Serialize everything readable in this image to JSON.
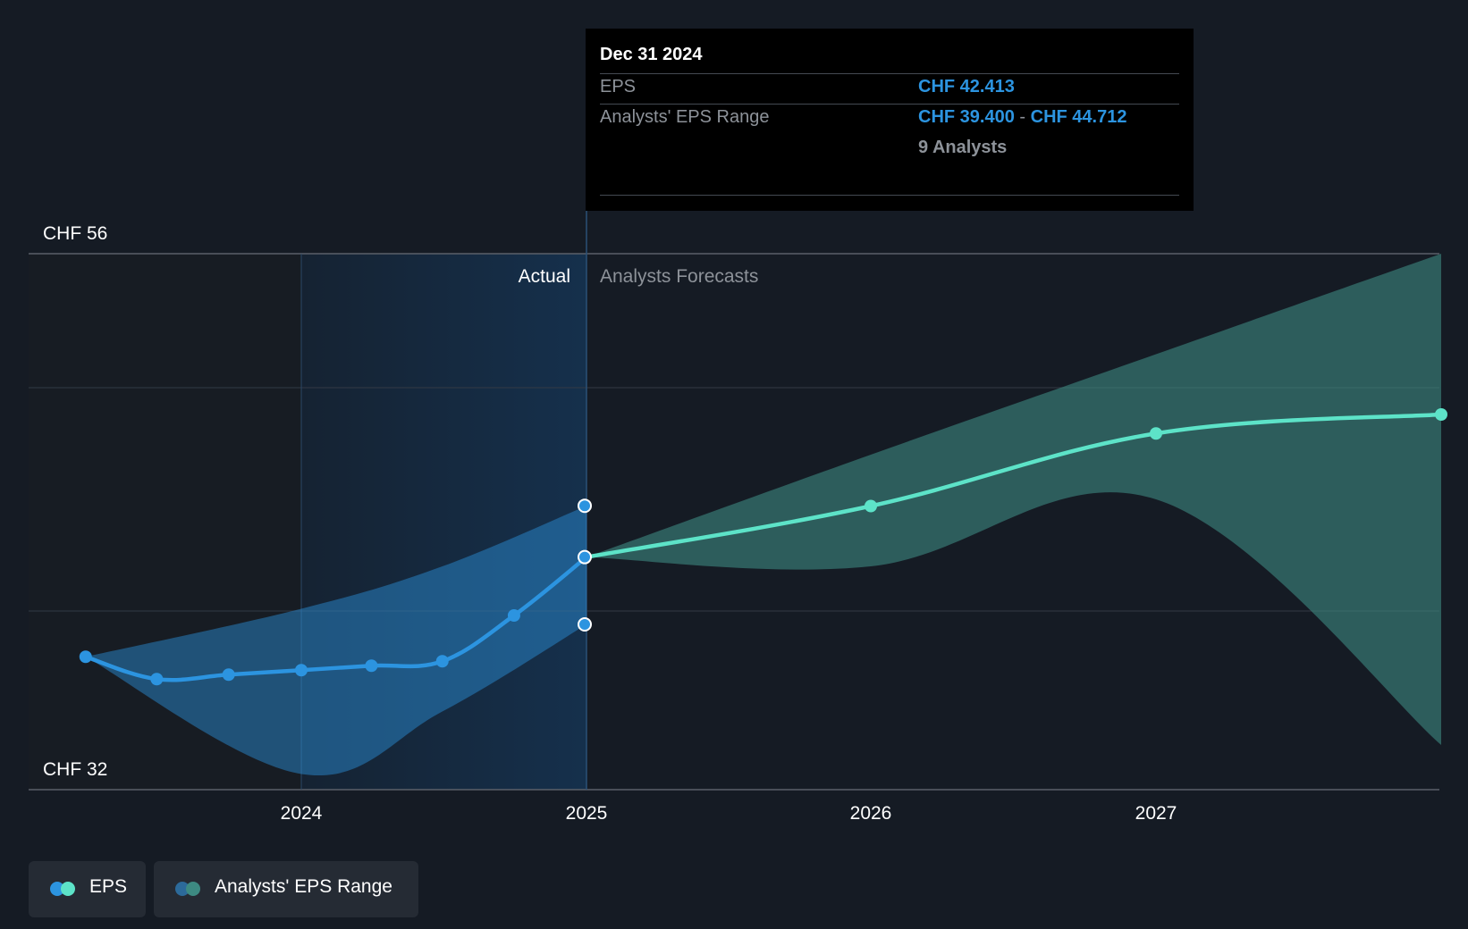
{
  "chart_data": {
    "type": "line",
    "currency": "CHF",
    "y_axis": {
      "min": 32,
      "max": 56,
      "tick_labels": [
        "CHF 56",
        "CHF 32"
      ]
    },
    "x_axis": {
      "tick_labels": [
        "2024",
        "2025",
        "2026",
        "2027"
      ]
    },
    "regions": {
      "actual_label": "Actual",
      "forecast_label": "Analysts Forecasts"
    },
    "series": [
      {
        "name": "EPS",
        "kind": "actual",
        "color": "#2c94e0",
        "points": [
          [
            "2023-03-31",
            37.95
          ],
          [
            "2023-06-30",
            36.95
          ],
          [
            "2023-09-30",
            37.15
          ],
          [
            "2023-12-31",
            37.35
          ],
          [
            "2024-03-31",
            37.55
          ],
          [
            "2024-06-30",
            37.75
          ],
          [
            "2024-09-30",
            39.8
          ],
          [
            "2024-12-31",
            42.413
          ]
        ]
      },
      {
        "name": "EPS",
        "kind": "forecast",
        "color": "#5de3c8",
        "points": [
          [
            "2024-12-31",
            42.413
          ],
          [
            "2025-12-31",
            44.7
          ],
          [
            "2026-12-31",
            47.95
          ],
          [
            "2027-12-31",
            48.8
          ]
        ]
      },
      {
        "name": "Analysts' EPS Range",
        "kind": "actual_range",
        "color": "#2c94e0",
        "low": [
          [
            "2023-03-31",
            37.95
          ],
          [
            "2023-12-31",
            32.7
          ],
          [
            "2024-06-30",
            35.5
          ],
          [
            "2024-12-31",
            39.4
          ]
        ],
        "high": [
          [
            "2023-03-31",
            37.95
          ],
          [
            "2023-12-31",
            40.1
          ],
          [
            "2024-06-30",
            42.0
          ],
          [
            "2024-12-31",
            44.712
          ]
        ]
      },
      {
        "name": "Analysts' EPS Range",
        "kind": "forecast_range",
        "color": "#3d8a82",
        "low": [
          [
            "2024-12-31",
            42.413
          ],
          [
            "2025-12-31",
            42.0
          ],
          [
            "2026-12-31",
            45.0
          ],
          [
            "2027-12-31",
            34.0
          ]
        ],
        "high": [
          [
            "2024-12-31",
            42.413
          ],
          [
            "2025-12-31",
            47.0
          ],
          [
            "2026-12-31",
            51.5
          ],
          [
            "2027-12-31",
            56.0
          ]
        ]
      }
    ],
    "tooltip": {
      "date": "Dec 31 2024",
      "eps_label": "EPS",
      "eps_value": "CHF 42.413",
      "range_label": "Analysts' EPS Range",
      "range_low": "CHF 39.400",
      "range_sep": "-",
      "range_high": "CHF 44.712",
      "analysts": "9 Analysts"
    },
    "legend": [
      {
        "label": "EPS",
        "colors": [
          "#2c94e0",
          "#5de3c8"
        ]
      },
      {
        "label": "Analysts' EPS Range",
        "colors": [
          "#2c6a9a",
          "#3d8a82"
        ]
      }
    ]
  }
}
